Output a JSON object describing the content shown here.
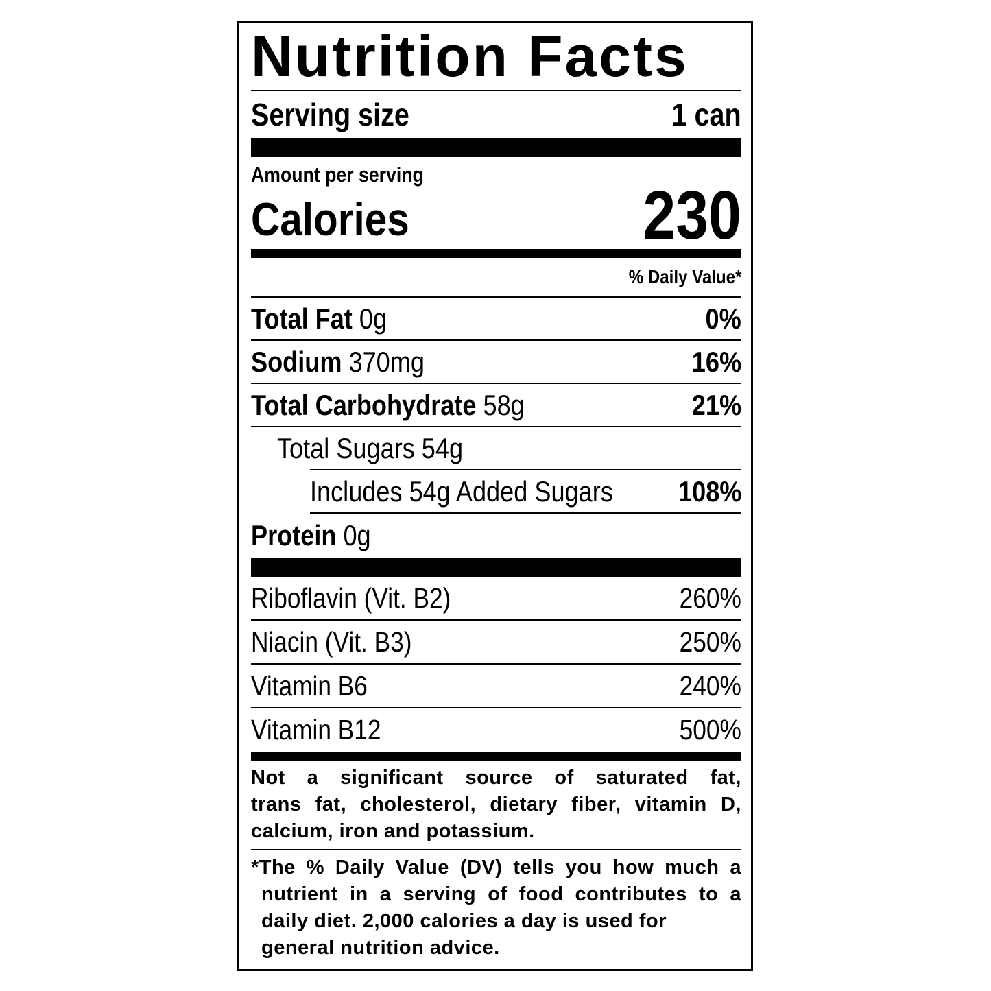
{
  "title": "Nutrition Facts",
  "serving": {
    "label": "Serving size",
    "value": "1 can"
  },
  "amount_per_serving": "Amount per serving",
  "calories": {
    "label": "Calories",
    "value": "230"
  },
  "daily_value_header": "% Daily Value*",
  "nutrients": [
    {
      "name": "Total Fat",
      "amount": "0g",
      "dv": "0%"
    },
    {
      "name": "Sodium",
      "amount": "370mg",
      "dv": "16%"
    },
    {
      "name": "Total Carbohydrate",
      "amount": "58g",
      "dv": "21%"
    },
    {
      "name": "Total Sugars 54g"
    },
    {
      "name": "Includes 54g Added Sugars",
      "dv": "108%"
    },
    {
      "name": "Protein",
      "amount": "0g"
    }
  ],
  "vitamins": [
    {
      "name": "Riboflavin (Vit. B2)",
      "dv": "260%"
    },
    {
      "name": "Niacin (Vit. B3)",
      "dv": "250%"
    },
    {
      "name": "Vitamin B6",
      "dv": "240%"
    },
    {
      "name": "Vitamin B12",
      "dv": "500%"
    }
  ],
  "footnote_not_significant": [
    "Not a significant source of saturated fat,",
    "trans fat, cholesterol, dietary fiber, vitamin D,",
    "calcium, iron and potassium."
  ],
  "footnote_dv": [
    "*The % Daily Value (DV) tells you how much a",
    "nutrient in a serving of food contributes to a",
    "daily diet. 2,000 calories a day is used for",
    "general nutrition advice."
  ]
}
